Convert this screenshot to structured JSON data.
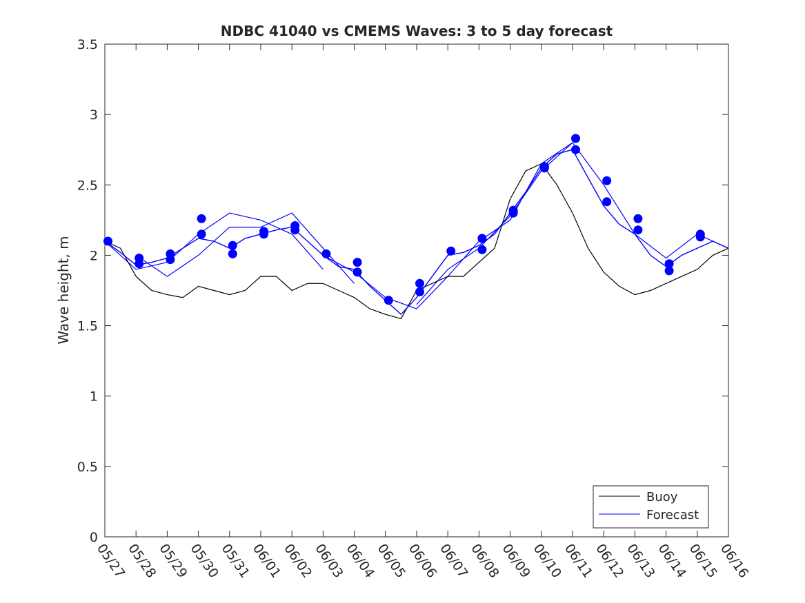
{
  "chart_data": {
    "type": "line",
    "title": "NDBC 41040 vs CMEMS Waves: 3 to 5 day forecast",
    "xlabel": "",
    "ylabel": "Wave height, m",
    "xlim": [
      "05/27",
      "06/16"
    ],
    "ylim": [
      0,
      3.5
    ],
    "grid": false,
    "legend_position": "bottom-right",
    "x_tick_labels": [
      "05/27",
      "05/28",
      "05/29",
      "05/30",
      "05/31",
      "06/01",
      "06/02",
      "06/03",
      "06/04",
      "06/05",
      "06/06",
      "06/07",
      "06/08",
      "06/09",
      "06/10",
      "06/11",
      "06/12",
      "06/13",
      "06/14",
      "06/15",
      "06/16"
    ],
    "y_tick_labels": [
      "0",
      "0.5",
      "1",
      "1.5",
      "2",
      "2.5",
      "3",
      "3.5"
    ],
    "colors": {
      "buoy": "#000000",
      "forecast": "#0000ff",
      "markers": "#0000ff"
    },
    "series": [
      {
        "name": "Buoy",
        "x_days": [
          0,
          0.5,
          1,
          1.5,
          2,
          2.5,
          3,
          3.5,
          4,
          4.5,
          5,
          5.5,
          6,
          6.5,
          7,
          7.5,
          8,
          8.5,
          9,
          9.5,
          10,
          10.5,
          11,
          11.5,
          12,
          12.5,
          13,
          13.5,
          14,
          14.5,
          15,
          15.5,
          16,
          16.5,
          17,
          17.5,
          18,
          18.5,
          19,
          19.5,
          20
        ],
        "values": [
          2.1,
          2.05,
          1.85,
          1.75,
          1.72,
          1.7,
          1.78,
          1.75,
          1.72,
          1.75,
          1.85,
          1.85,
          1.75,
          1.8,
          1.8,
          1.75,
          1.7,
          1.62,
          1.58,
          1.55,
          1.75,
          1.8,
          1.85,
          1.85,
          1.95,
          2.05,
          2.4,
          2.6,
          2.65,
          2.5,
          2.3,
          2.05,
          1.88,
          1.78,
          1.72,
          1.75,
          1.8,
          1.85,
          1.9,
          2.0,
          2.05
        ]
      },
      {
        "name": "Forecast",
        "x_days": [
          0,
          0.5,
          1,
          1.5,
          2,
          2.5,
          3,
          3.5,
          4,
          4.5,
          5,
          5.5,
          6,
          6.5,
          7,
          7.5,
          8,
          8.5,
          9,
          9.5,
          10,
          10.5,
          11,
          11.5,
          12,
          12.5,
          13,
          13.5,
          14,
          14.5,
          15,
          15.5,
          16,
          16.5,
          17,
          17.5,
          18,
          18.5,
          19,
          19.5,
          20
        ],
        "values": [
          2.1,
          2.02,
          1.93,
          1.95,
          1.98,
          2.05,
          2.12,
          2.1,
          2.05,
          2.12,
          2.15,
          2.18,
          2.2,
          2.1,
          2.0,
          1.92,
          1.9,
          1.78,
          1.68,
          1.58,
          1.7,
          1.85,
          2.0,
          2.02,
          2.07,
          2.15,
          2.3,
          2.45,
          2.62,
          2.72,
          2.75,
          2.55,
          2.35,
          2.22,
          2.15,
          2.0,
          1.92,
          2.0,
          2.05,
          2.1,
          2.05
        ]
      }
    ],
    "extra_forecast_runs": [
      {
        "x_days": [
          0,
          1,
          2,
          3,
          4,
          5,
          6,
          7
        ],
        "values": [
          2.1,
          1.9,
          1.95,
          2.15,
          2.3,
          2.25,
          2.15,
          1.9
        ]
      },
      {
        "x_days": [
          1,
          2,
          3,
          4,
          5,
          6,
          7,
          8
        ],
        "values": [
          2.0,
          1.85,
          2.0,
          2.2,
          2.2,
          2.3,
          2.05,
          1.8
        ]
      },
      {
        "x_days": [
          7,
          8,
          9,
          10,
          11,
          12,
          13,
          14,
          15
        ],
        "values": [
          2.0,
          1.88,
          1.7,
          1.62,
          1.85,
          2.1,
          2.25,
          2.65,
          2.8
        ]
      },
      {
        "x_days": [
          10,
          11,
          12,
          13,
          14,
          15,
          16,
          17,
          18,
          19,
          20
        ],
        "values": [
          1.65,
          1.9,
          2.05,
          2.28,
          2.6,
          2.8,
          2.5,
          2.15,
          1.98,
          2.15,
          2.05
        ]
      }
    ],
    "forecast_points": [
      [
        0.1,
        2.1
      ],
      [
        1.1,
        1.98
      ],
      [
        1.1,
        1.94
      ],
      [
        2.1,
        2.01
      ],
      [
        2.1,
        1.97
      ],
      [
        3.1,
        2.26
      ],
      [
        3.1,
        2.15
      ],
      [
        4.1,
        2.07
      ],
      [
        4.1,
        2.01
      ],
      [
        5.1,
        2.17
      ],
      [
        5.1,
        2.15
      ],
      [
        6.1,
        2.21
      ],
      [
        6.1,
        2.18
      ],
      [
        7.1,
        2.01
      ],
      [
        8.1,
        1.95
      ],
      [
        8.1,
        1.88
      ],
      [
        9.1,
        1.68
      ],
      [
        10.1,
        1.8
      ],
      [
        10.1,
        1.74
      ],
      [
        11.1,
        2.03
      ],
      [
        12.1,
        2.12
      ],
      [
        12.1,
        2.04
      ],
      [
        13.1,
        2.32
      ],
      [
        13.1,
        2.3
      ],
      [
        14.1,
        2.63
      ],
      [
        14.1,
        2.62
      ],
      [
        15.1,
        2.83
      ],
      [
        15.1,
        2.75
      ],
      [
        16.1,
        2.53
      ],
      [
        16.1,
        2.38
      ],
      [
        17.1,
        2.26
      ],
      [
        17.1,
        2.18
      ],
      [
        18.1,
        1.94
      ],
      [
        18.1,
        1.89
      ],
      [
        19.1,
        2.15
      ],
      [
        19.1,
        2.13
      ]
    ]
  }
}
